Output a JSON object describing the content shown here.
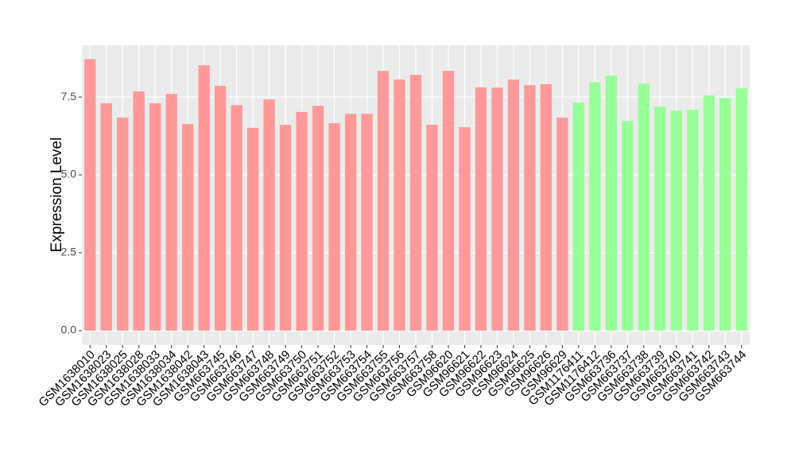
{
  "chart_data": {
    "type": "bar",
    "y_label": "Expression Level",
    "categories": [
      "GSM1638010",
      "GSM1638023",
      "GSM1638025",
      "GSM1638028",
      "GSM1638033",
      "GSM1638034",
      "GSM1638042",
      "GSM1638043",
      "GSM663745",
      "GSM663746",
      "GSM663747",
      "GSM663748",
      "GSM663749",
      "GSM663750",
      "GSM663751",
      "GSM663752",
      "GSM663753",
      "GSM663754",
      "GSM663755",
      "GSM663756",
      "GSM663757",
      "GSM663758",
      "GSM96620",
      "GSM96621",
      "GSM96622",
      "GSM96623",
      "GSM96624",
      "GSM96625",
      "GSM96626",
      "GSM96629",
      "GSM1176411",
      "GSM1176412",
      "GSM663736",
      "GSM663737",
      "GSM663738",
      "GSM663739",
      "GSM663740",
      "GSM663741",
      "GSM663742",
      "GSM663743",
      "GSM663744"
    ],
    "values": [
      8.72,
      7.3,
      6.84,
      7.68,
      7.3,
      7.6,
      6.63,
      8.52,
      7.86,
      7.24,
      6.51,
      7.42,
      6.61,
      7.02,
      7.22,
      6.66,
      6.96,
      6.96,
      8.34,
      8.06,
      8.21,
      6.61,
      8.34,
      6.53,
      7.81,
      7.8,
      8.06,
      7.88,
      7.91,
      6.84,
      7.32,
      7.98,
      8.19,
      6.73,
      7.93,
      7.19,
      7.06,
      7.09,
      7.55,
      7.47,
      7.78
    ],
    "colors": [
      "#ff9999",
      "#ff9999",
      "#ff9999",
      "#ff9999",
      "#ff9999",
      "#ff9999",
      "#ff9999",
      "#ff9999",
      "#ff9999",
      "#ff9999",
      "#ff9999",
      "#ff9999",
      "#ff9999",
      "#ff9999",
      "#ff9999",
      "#ff9999",
      "#ff9999",
      "#ff9999",
      "#ff9999",
      "#ff9999",
      "#ff9999",
      "#ff9999",
      "#ff9999",
      "#ff9999",
      "#ff9999",
      "#ff9999",
      "#ff9999",
      "#ff9999",
      "#ff9999",
      "#ff9999",
      "#99ff99",
      "#99ff99",
      "#99ff99",
      "#99ff99",
      "#99ff99",
      "#99ff99",
      "#99ff99",
      "#99ff99",
      "#99ff99",
      "#99ff99",
      "#99ff99"
    ],
    "ylim": [
      -0.46,
      9.16
    ],
    "yticks": [
      {
        "value": 0,
        "label": "0.0"
      },
      2.5,
      {
        "value": 5,
        "label": "5.0"
      },
      7.5
    ],
    "grid": true
  }
}
